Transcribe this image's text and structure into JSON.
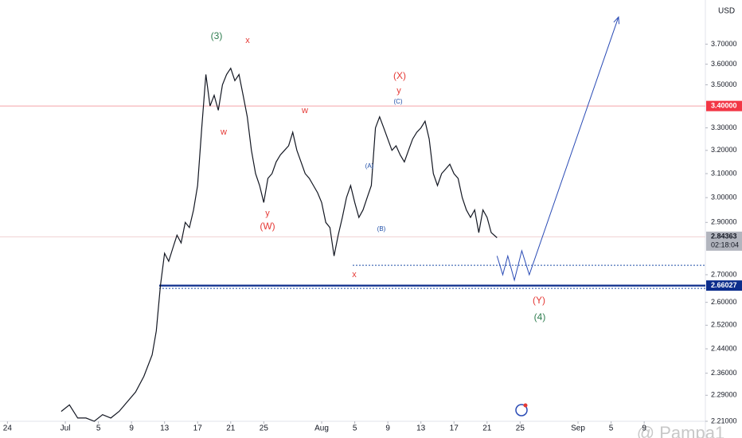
{
  "chart_data": {
    "type": "line",
    "currency": "USD",
    "log_scale": true,
    "xlim": [
      -0.9,
      84.4
    ],
    "xticks": [
      {
        "value": 0,
        "label": "24"
      },
      {
        "value": 7,
        "label": "Jul"
      },
      {
        "value": 11,
        "label": "5"
      },
      {
        "value": 15,
        "label": "9"
      },
      {
        "value": 19,
        "label": "13"
      },
      {
        "value": 23,
        "label": "17"
      },
      {
        "value": 27,
        "label": "21"
      },
      {
        "value": 31,
        "label": "25"
      },
      {
        "value": 38,
        "label": "Aug"
      },
      {
        "value": 42,
        "label": "5"
      },
      {
        "value": 46,
        "label": "9"
      },
      {
        "value": 50,
        "label": "13"
      },
      {
        "value": 54,
        "label": "17"
      },
      {
        "value": 58,
        "label": "21"
      },
      {
        "value": 62,
        "label": "25"
      },
      {
        "value": 69,
        "label": "Sep"
      },
      {
        "value": 73,
        "label": "5"
      },
      {
        "value": 77,
        "label": "9"
      }
    ],
    "ylim": [
      2.21,
      3.93
    ],
    "yticks": [
      {
        "value": 3.7,
        "label": "3.70000"
      },
      {
        "value": 3.6,
        "label": "3.60000"
      },
      {
        "value": 3.5,
        "label": "3.50000"
      },
      {
        "value": 3.3,
        "label": "3.30000"
      },
      {
        "value": 3.2,
        "label": "3.20000"
      },
      {
        "value": 3.1,
        "label": "3.10000"
      },
      {
        "value": 3.0,
        "label": "3.00000"
      },
      {
        "value": 2.9,
        "label": "2.90000"
      },
      {
        "value": 2.7,
        "label": "2.70000"
      },
      {
        "value": 2.6,
        "label": "2.60000"
      },
      {
        "value": 2.52,
        "label": "2.52000"
      },
      {
        "value": 2.44,
        "label": "2.44000"
      },
      {
        "value": 2.36,
        "label": "2.36000"
      },
      {
        "value": 2.29,
        "label": "2.29000"
      },
      {
        "value": 2.21,
        "label": "2.21000"
      }
    ],
    "series": [
      {
        "color": "#131722",
        "x": [
          6.5,
          7.5,
          8.5,
          9.5,
          10.5,
          11.5,
          12.5,
          13.5,
          14.5,
          15.5,
          16.5,
          17.5,
          18,
          18.5,
          19,
          19.5,
          20,
          20.5,
          21,
          21.5,
          22,
          22.5,
          23,
          23.5,
          24,
          24.5,
          25,
          25.5,
          26,
          26.5,
          27,
          27.5,
          28,
          28.5,
          29,
          29.5,
          30,
          30.5,
          31,
          31.5,
          32,
          32.5,
          33,
          33.5,
          34,
          34.5,
          35,
          35.5,
          36,
          36.5,
          37,
          37.5,
          38,
          38.5,
          39,
          39.5,
          40,
          40.5,
          41,
          41.5,
          42,
          42.5,
          43,
          43.5,
          44,
          44.5,
          45,
          45.5,
          46,
          46.5,
          47,
          47.5,
          48,
          48.5,
          49,
          49.5,
          50,
          50.5,
          51,
          51.5,
          52,
          52.5,
          53,
          53.5,
          54,
          54.5,
          55,
          55.5,
          56,
          56.5,
          57,
          57.5,
          58,
          58.5,
          59.2
        ],
        "values": [
          2.24,
          2.26,
          2.22,
          2.22,
          2.21,
          2.23,
          2.22,
          2.24,
          2.27,
          2.3,
          2.35,
          2.42,
          2.5,
          2.66,
          2.78,
          2.75,
          2.8,
          2.85,
          2.82,
          2.9,
          2.88,
          2.95,
          3.05,
          3.3,
          3.55,
          3.4,
          3.45,
          3.38,
          3.5,
          3.55,
          3.58,
          3.52,
          3.55,
          3.45,
          3.35,
          3.2,
          3.1,
          3.05,
          2.98,
          3.08,
          3.1,
          3.15,
          3.18,
          3.2,
          3.22,
          3.28,
          3.2,
          3.15,
          3.1,
          3.08,
          3.05,
          3.02,
          2.98,
          2.9,
          2.88,
          2.77,
          2.85,
          2.92,
          3.0,
          3.05,
          2.98,
          2.92,
          2.95,
          3.0,
          3.05,
          3.3,
          3.35,
          3.3,
          3.25,
          3.2,
          3.22,
          3.18,
          3.15,
          3.2,
          3.25,
          3.28,
          3.3,
          3.33,
          3.25,
          3.1,
          3.05,
          3.1,
          3.12,
          3.14,
          3.1,
          3.08,
          3.0,
          2.95,
          2.92,
          2.95,
          2.86,
          2.95,
          2.92,
          2.86,
          2.84
        ]
      },
      {
        "color": "#2a4bb5",
        "x": [
          59.2,
          59.9,
          60.5,
          61.3,
          62.2,
          63.1,
          73.9
        ],
        "values": [
          2.77,
          2.7,
          2.77,
          2.68,
          2.79,
          2.7,
          3.84
        ]
      }
    ],
    "price_levels": [
      {
        "value": 3.4,
        "label": "3.40000",
        "color": "#f23645"
      },
      {
        "value": 2.84363,
        "label": "2.84363",
        "color": "#b2b5be"
      },
      {
        "value": 2.66027,
        "label": "2.66027",
        "color": "#0c2d8c"
      }
    ],
    "countdown": "02:18:04",
    "dotted_levels": [
      2.735,
      2.65
    ],
    "annotations": [
      {
        "text": "(3)",
        "color": "#2e7d4f"
      },
      {
        "text": "x",
        "color": "#e53935"
      },
      {
        "text": "w",
        "color": "#e53935"
      },
      {
        "text": "w",
        "color": "#e53935"
      },
      {
        "text": "y",
        "color": "#e53935"
      },
      {
        "text": "(W)",
        "color": "#e53935"
      },
      {
        "text": "(X)",
        "color": "#e53935"
      },
      {
        "text": "y",
        "color": "#e53935"
      },
      {
        "text": "(C)",
        "color": "#1e4ea8"
      },
      {
        "text": "(A)",
        "color": "#1e4ea8"
      },
      {
        "text": "(B)",
        "color": "#1e4ea8"
      },
      {
        "text": "x",
        "color": "#e53935"
      },
      {
        "text": "(Y)",
        "color": "#e53935"
      },
      {
        "text": "(4)",
        "color": "#2e7d4f"
      }
    ],
    "watermark": "@ Pampa1"
  }
}
